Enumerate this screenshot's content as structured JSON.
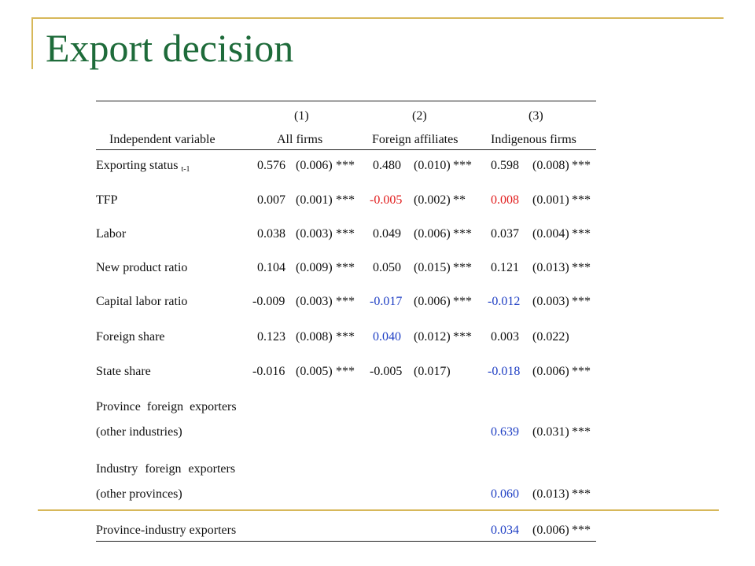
{
  "title": "Export decision",
  "table": {
    "groups": [
      "(1)",
      "(2)",
      "(3)"
    ],
    "headers": [
      "Independent variable",
      "All firms",
      "Foreign affiliates",
      "Indigenous firms"
    ],
    "rows": [
      {
        "label": "Exporting status",
        "label_sub": "t-1",
        "c1": [
          "0.576",
          "(0.006)",
          "***"
        ],
        "c2": [
          "0.480",
          "(0.010)",
          "***"
        ],
        "c3": [
          "0.598",
          "(0.008)",
          "***"
        ]
      },
      {
        "label": "TFP",
        "c1": [
          "0.007",
          "(0.001)",
          "***"
        ],
        "c2": [
          "-0.005",
          "(0.002)",
          "**"
        ],
        "c3": [
          "0.008",
          "(0.001)",
          "***"
        ]
      },
      {
        "label": "Labor",
        "c1": [
          "0.038",
          "(0.003)",
          "***"
        ],
        "c2": [
          "0.049",
          "(0.006)",
          "***"
        ],
        "c3": [
          "0.037",
          "(0.004)",
          "***"
        ]
      },
      {
        "label": "New product ratio",
        "c1": [
          "0.104",
          "(0.009)",
          "***"
        ],
        "c2": [
          "0.050",
          "(0.015)",
          "***"
        ],
        "c3": [
          "0.121",
          "(0.013)",
          "***"
        ]
      },
      {
        "label": "Capital labor ratio",
        "c1": [
          "-0.009",
          "(0.003)",
          "***"
        ],
        "c2": [
          "-0.017",
          "(0.006)",
          "***"
        ],
        "c3": [
          "-0.012",
          "(0.003)",
          "***"
        ]
      },
      {
        "label": "Foreign share",
        "c1": [
          "0.123",
          "(0.008)",
          "***"
        ],
        "c2": [
          "0.040",
          "(0.012)",
          "***"
        ],
        "c3": [
          "0.003",
          "(0.022)",
          ""
        ]
      },
      {
        "label": "State share",
        "c1": [
          "-0.016",
          "(0.005)",
          "***"
        ],
        "c2": [
          "-0.005",
          "(0.017)",
          ""
        ],
        "c3": [
          "-0.018",
          "(0.006)",
          "***"
        ]
      },
      {
        "label": "Province foreign exporters"
      },
      {
        "label": "(other industries)",
        "c3": [
          "0.639",
          "(0.031)",
          "***"
        ]
      },
      {
        "label": "Industry foreign exporters"
      },
      {
        "label": "(other provinces)",
        "c3": [
          "0.060",
          "(0.013)",
          "***"
        ]
      },
      {
        "label": "Province-industry exporters",
        "c3": [
          "0.034",
          "(0.006)",
          "***"
        ]
      }
    ]
  },
  "colors": {
    "title": "#1e6b3a",
    "frame": "#d7b85a",
    "highlight_red": "#e11d1d",
    "highlight_blue": "#1f3fc4"
  }
}
